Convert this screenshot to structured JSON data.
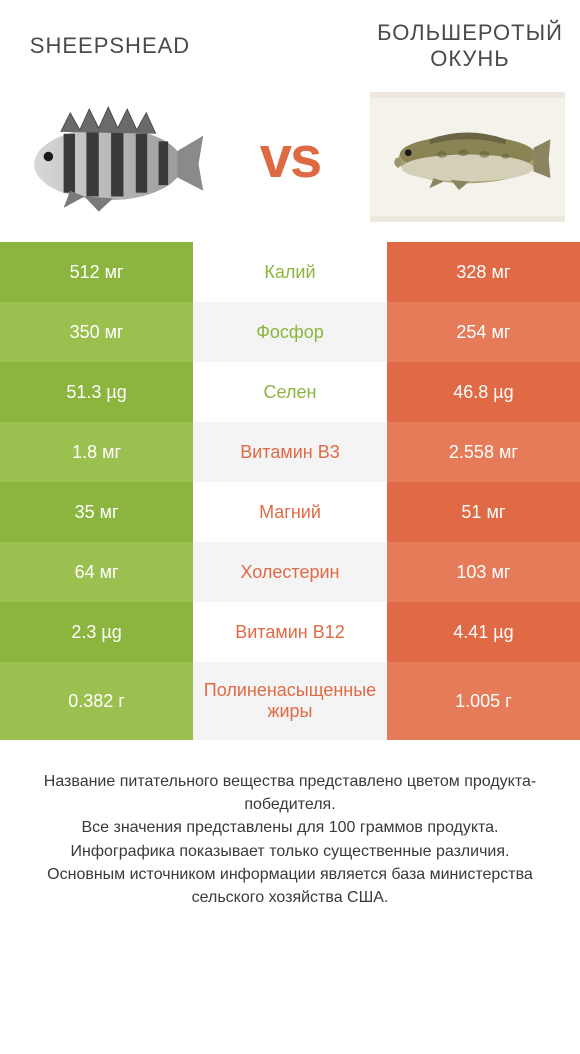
{
  "header": {
    "left_title": "Sheepshead",
    "right_title": "Большеротый окунь",
    "vs": "vs"
  },
  "colors": {
    "left_primary": "#8cb53f",
    "left_alt": "#9cc050",
    "right_primary": "#e06a45",
    "right_alt": "#e57b58",
    "mid_primary": "#ffffff",
    "mid_alt": "#f4f4f4",
    "label_left_win": "#8cb53f",
    "label_right_win": "#e06a45"
  },
  "rows": [
    {
      "left": "512 мг",
      "label": "Калий",
      "right": "328 мг",
      "winner": "left",
      "tall": false
    },
    {
      "left": "350 мг",
      "label": "Фосфор",
      "right": "254 мг",
      "winner": "left",
      "tall": false
    },
    {
      "left": "51.3 µg",
      "label": "Селен",
      "right": "46.8 µg",
      "winner": "left",
      "tall": false
    },
    {
      "left": "1.8 мг",
      "label": "Витамин B3",
      "right": "2.558 мг",
      "winner": "right",
      "tall": false
    },
    {
      "left": "35 мг",
      "label": "Магний",
      "right": "51 мг",
      "winner": "right",
      "tall": false
    },
    {
      "left": "64 мг",
      "label": "Холестерин",
      "right": "103 мг",
      "winner": "right",
      "tall": false
    },
    {
      "left": "2.3 µg",
      "label": "Витамин B12",
      "right": "4.41 µg",
      "winner": "right",
      "tall": false
    },
    {
      "left": "0.382 г",
      "label": "Полиненасыщенные жиры",
      "right": "1.005 г",
      "winner": "right",
      "tall": true
    }
  ],
  "footer": {
    "line1": "Название питательного вещества представлено цветом продукта-победителя.",
    "line2": "Все значения представлены для 100 граммов продукта.",
    "line3": "Инфографика показывает только существенные различия.",
    "line4": "Основным источником информации является база министерства сельского хозяйства США."
  }
}
